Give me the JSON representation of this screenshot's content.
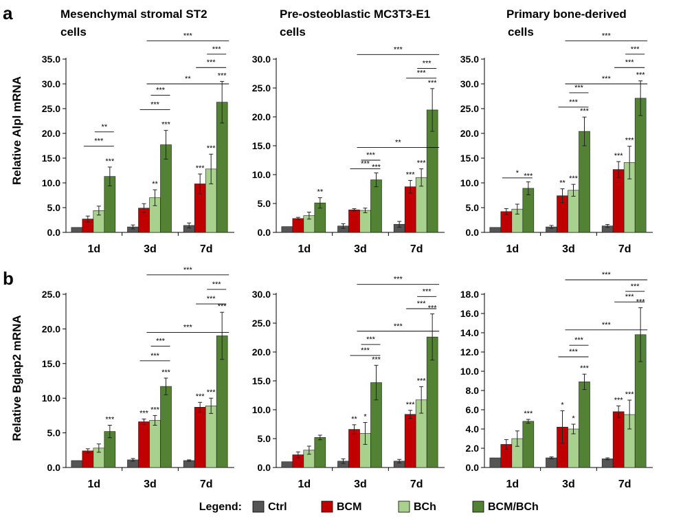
{
  "panels": [
    {
      "letter": "a",
      "ylabel": "Relative Alpl mRNA"
    },
    {
      "letter": "b",
      "ylabel": "Relative Bglap2 mRNA"
    }
  ],
  "legend": {
    "label": "Legend:",
    "entries": [
      {
        "name": "Ctrl",
        "color": "#555555"
      },
      {
        "name": "BCM",
        "color": "#c00000"
      },
      {
        "name": "BCh",
        "color": "#a9d18e"
      },
      {
        "name": "BCM/BCh",
        "color": "#548235"
      }
    ]
  },
  "chart_data": [
    {
      "type": "bar",
      "row": "a",
      "col": 0,
      "title": [
        "Mesenchymal stromal ST2",
        "cells"
      ],
      "ylabel": "Relative Alpl mRNA",
      "categories": [
        "1d",
        "3d",
        "7d"
      ],
      "ylim": [
        0,
        35
      ],
      "yticks": [
        0,
        5,
        10,
        15,
        20,
        25,
        30,
        35
      ],
      "series": [
        {
          "name": "Ctrl",
          "values": [
            1.0,
            1.1,
            1.4
          ],
          "errors": [
            0.0,
            0.4,
            0.5
          ],
          "sig": [
            "",
            "",
            ""
          ]
        },
        {
          "name": "BCM",
          "values": [
            2.7,
            4.9,
            9.8
          ],
          "errors": [
            0.6,
            0.9,
            2.0
          ],
          "sig": [
            "",
            "",
            "***"
          ]
        },
        {
          "name": "BCh",
          "values": [
            4.4,
            7.0,
            12.8
          ],
          "errors": [
            0.9,
            1.6,
            3.0
          ],
          "sig": [
            "",
            "**",
            "***"
          ]
        },
        {
          "name": "BCM/BCh",
          "values": [
            11.3,
            17.7,
            26.3
          ],
          "errors": [
            1.9,
            2.9,
            4.2
          ],
          "sig": [
            "***",
            "***",
            "***"
          ]
        }
      ],
      "brackets": [
        {
          "text": "***",
          "cat": 0,
          "from": 1,
          "to": 3,
          "y": 17.4
        },
        {
          "text": "**",
          "cat": 0,
          "from": 2,
          "to": 3,
          "y": 20.3
        },
        {
          "text": "***",
          "cat": 1,
          "from": 1,
          "to": 3,
          "y": 24.8
        },
        {
          "text": "***",
          "cat": 1,
          "from": 2,
          "to": 3,
          "y": 27.7
        },
        {
          "text": "***",
          "cat": 2,
          "from": 1,
          "to": 3,
          "y": 33.3
        },
        {
          "text": "***",
          "cat": 2,
          "from": 2,
          "to": 3,
          "y": 36.0
        },
        {
          "span": [
            1,
            2
          ],
          "text": "**",
          "y": 30.0
        },
        {
          "span": [
            1,
            2
          ],
          "text": "***",
          "y": 38.7
        }
      ]
    },
    {
      "type": "bar",
      "row": "a",
      "col": 1,
      "title": [
        "Pre-osteoblastic MC3T3-E1",
        "cells"
      ],
      "ylabel": "",
      "categories": [
        "1d",
        "3d",
        "7d"
      ],
      "ylim": [
        0,
        30
      ],
      "yticks": [
        0,
        5,
        10,
        15,
        20,
        25,
        30
      ],
      "series": [
        {
          "name": "Ctrl",
          "values": [
            1.0,
            1.1,
            1.4
          ],
          "errors": [
            0.0,
            0.4,
            0.5
          ],
          "sig": [
            "",
            "",
            ""
          ]
        },
        {
          "name": "BCM",
          "values": [
            2.4,
            3.9,
            7.9
          ],
          "errors": [
            0.2,
            0.2,
            1.1
          ],
          "sig": [
            "",
            "",
            "***"
          ]
        },
        {
          "name": "BCh",
          "values": [
            2.9,
            3.8,
            9.5
          ],
          "errors": [
            0.6,
            0.4,
            1.5
          ],
          "sig": [
            "",
            "",
            "***"
          ]
        },
        {
          "name": "BCM/BCh",
          "values": [
            5.1,
            9.1,
            21.2
          ],
          "errors": [
            0.9,
            1.2,
            3.7
          ],
          "sig": [
            "**",
            "***",
            "***"
          ]
        }
      ],
      "brackets": [
        {
          "text": "***",
          "cat": 1,
          "from": 1,
          "to": 3,
          "y": 11.0
        },
        {
          "text": "***",
          "cat": 1,
          "from": 2,
          "to": 3,
          "y": 12.5
        },
        {
          "text": "***",
          "cat": 2,
          "from": 1,
          "to": 3,
          "y": 26.7
        },
        {
          "text": "***",
          "cat": 2,
          "from": 2,
          "to": 3,
          "y": 28.4
        },
        {
          "span": [
            1,
            2
          ],
          "text": "**",
          "y": 14.7
        },
        {
          "span": [
            1,
            2
          ],
          "text": "***",
          "y": 30.8
        }
      ]
    },
    {
      "type": "bar",
      "row": "a",
      "col": 2,
      "title": [
        "Primary bone-derived",
        "cells"
      ],
      "ylabel": "",
      "categories": [
        "1d",
        "3d",
        "7d"
      ],
      "ylim": [
        0,
        35
      ],
      "yticks": [
        0,
        5,
        10,
        15,
        20,
        25,
        30,
        35
      ],
      "series": [
        {
          "name": "Ctrl",
          "values": [
            1.0,
            1.1,
            1.3
          ],
          "errors": [
            0.0,
            0.3,
            0.3
          ],
          "sig": [
            "",
            "",
            ""
          ]
        },
        {
          "name": "BCM",
          "values": [
            4.2,
            7.4,
            12.7
          ],
          "errors": [
            0.6,
            1.4,
            1.6
          ],
          "sig": [
            "",
            "**",
            "***"
          ]
        },
        {
          "name": "BCh",
          "values": [
            4.7,
            8.5,
            14.1
          ],
          "errors": [
            1.0,
            1.2,
            3.3
          ],
          "sig": [
            "",
            "***",
            "***"
          ]
        },
        {
          "name": "BCM/BCh",
          "values": [
            8.9,
            20.4,
            27.1
          ],
          "errors": [
            1.3,
            2.9,
            3.5
          ],
          "sig": [
            "***",
            "***",
            "***"
          ]
        }
      ],
      "brackets": [
        {
          "text": "*",
          "cat": 0,
          "from": 1,
          "to": 3,
          "y": 11.0
        },
        {
          "text": "***",
          "cat": 1,
          "from": 1,
          "to": 3,
          "y": 25.3
        },
        {
          "text": "***",
          "cat": 1,
          "from": 2,
          "to": 3,
          "y": 28.2
        },
        {
          "text": "***",
          "cat": 2,
          "from": 1,
          "to": 3,
          "y": 33.3
        },
        {
          "text": "***",
          "cat": 2,
          "from": 2,
          "to": 3,
          "y": 36.0
        },
        {
          "span": [
            1,
            2
          ],
          "text": "***",
          "y": 30.0
        },
        {
          "span": [
            1,
            2
          ],
          "text": "***",
          "y": 38.7
        }
      ]
    },
    {
      "type": "bar",
      "row": "b",
      "col": 0,
      "title": [],
      "ylabel": "Relative Bglap2 mRNA",
      "categories": [
        "1d",
        "3d",
        "7d"
      ],
      "ylim": [
        0,
        25
      ],
      "yticks": [
        0,
        5,
        10,
        15,
        20,
        25
      ],
      "series": [
        {
          "name": "Ctrl",
          "values": [
            1.0,
            1.1,
            1.0
          ],
          "errors": [
            0.0,
            0.2,
            0.1
          ],
          "sig": [
            "",
            "",
            ""
          ]
        },
        {
          "name": "BCM",
          "values": [
            2.4,
            6.6,
            8.7
          ],
          "errors": [
            0.3,
            0.4,
            0.7
          ],
          "sig": [
            "",
            "***",
            "***"
          ]
        },
        {
          "name": "BCh",
          "values": [
            2.8,
            6.8,
            8.9
          ],
          "errors": [
            0.6,
            0.7,
            1.1
          ],
          "sig": [
            "",
            "***",
            "***"
          ]
        },
        {
          "name": "BCM/BCh",
          "values": [
            5.2,
            11.7,
            19.0
          ],
          "errors": [
            0.9,
            1.2,
            3.4
          ],
          "sig": [
            "***",
            "***",
            "***"
          ]
        }
      ],
      "brackets": [
        {
          "text": "***",
          "cat": 1,
          "from": 1,
          "to": 3,
          "y": 15.4
        },
        {
          "text": "***",
          "cat": 1,
          "from": 2,
          "to": 3,
          "y": 17.5
        },
        {
          "text": "***",
          "cat": 2,
          "from": 1,
          "to": 3,
          "y": 23.6
        },
        {
          "text": "***",
          "cat": 2,
          "from": 2,
          "to": 3,
          "y": 25.7
        },
        {
          "span": [
            1,
            2
          ],
          "text": "***",
          "y": 19.5
        },
        {
          "span": [
            1,
            2
          ],
          "text": "***",
          "y": 27.8
        }
      ]
    },
    {
      "type": "bar",
      "row": "b",
      "col": 1,
      "title": [],
      "ylabel": "",
      "categories": [
        "1d",
        "3d",
        "7d"
      ],
      "ylim": [
        0,
        30
      ],
      "yticks": [
        0,
        5,
        10,
        15,
        20,
        25,
        30
      ],
      "series": [
        {
          "name": "Ctrl",
          "values": [
            1.0,
            1.1,
            1.1
          ],
          "errors": [
            0.0,
            0.4,
            0.3
          ],
          "sig": [
            "",
            "",
            ""
          ]
        },
        {
          "name": "BCM",
          "values": [
            2.2,
            6.6,
            9.2
          ],
          "errors": [
            0.5,
            0.8,
            0.7
          ],
          "sig": [
            "",
            "**",
            "***"
          ]
        },
        {
          "name": "BCh",
          "values": [
            3.0,
            5.9,
            11.7
          ],
          "errors": [
            0.7,
            1.9,
            2.3
          ],
          "sig": [
            "",
            "*",
            "***"
          ]
        },
        {
          "name": "BCM/BCh",
          "values": [
            5.2,
            14.7,
            22.6
          ],
          "errors": [
            0.4,
            3.0,
            4.0
          ],
          "sig": [
            "",
            "***",
            "***"
          ]
        }
      ],
      "brackets": [
        {
          "text": "***",
          "cat": 1,
          "from": 1,
          "to": 3,
          "y": 19.4
        },
        {
          "text": "***",
          "cat": 1,
          "from": 2,
          "to": 3,
          "y": 21.3
        },
        {
          "text": "***",
          "cat": 2,
          "from": 1,
          "to": 3,
          "y": 27.5
        },
        {
          "text": "***",
          "cat": 2,
          "from": 2,
          "to": 3,
          "y": 29.6
        },
        {
          "span": [
            1,
            2
          ],
          "text": "***",
          "y": 23.6
        },
        {
          "span": [
            1,
            2
          ],
          "text": "***",
          "y": 31.7
        }
      ]
    },
    {
      "type": "bar",
      "row": "b",
      "col": 2,
      "title": [],
      "ylabel": "",
      "categories": [
        "1d",
        "3d",
        "7d"
      ],
      "ylim": [
        0,
        18
      ],
      "yticks": [
        0,
        2,
        4,
        6,
        8,
        10,
        12,
        14,
        16,
        18
      ],
      "series": [
        {
          "name": "Ctrl",
          "values": [
            1.0,
            1.0,
            0.9
          ],
          "errors": [
            0.0,
            0.1,
            0.1
          ],
          "sig": [
            "",
            "",
            ""
          ]
        },
        {
          "name": "BCM",
          "values": [
            2.4,
            4.2,
            5.8
          ],
          "errors": [
            0.5,
            1.7,
            0.6
          ],
          "sig": [
            "",
            "*",
            "***"
          ]
        },
        {
          "name": "BCh",
          "values": [
            3.0,
            4.0,
            5.5
          ],
          "errors": [
            0.8,
            0.5,
            1.5
          ],
          "sig": [
            "",
            "*",
            "***"
          ]
        },
        {
          "name": "BCM/BCh",
          "values": [
            4.8,
            8.9,
            13.8
          ],
          "errors": [
            0.2,
            0.8,
            2.8
          ],
          "sig": [
            "***",
            "***",
            "***"
          ]
        }
      ],
      "brackets": [
        {
          "text": "***",
          "cat": 1,
          "from": 1,
          "to": 3,
          "y": 11.5
        },
        {
          "text": "***",
          "cat": 1,
          "from": 2,
          "to": 3,
          "y": 12.7
        },
        {
          "text": "***",
          "cat": 2,
          "from": 1,
          "to": 3,
          "y": 17.2
        },
        {
          "text": "***",
          "cat": 2,
          "from": 2,
          "to": 3,
          "y": 18.3
        },
        {
          "span": [
            1,
            2
          ],
          "text": "***",
          "y": 14.3
        },
        {
          "span": [
            1,
            2
          ],
          "text": "***",
          "y": 19.5
        }
      ]
    }
  ]
}
